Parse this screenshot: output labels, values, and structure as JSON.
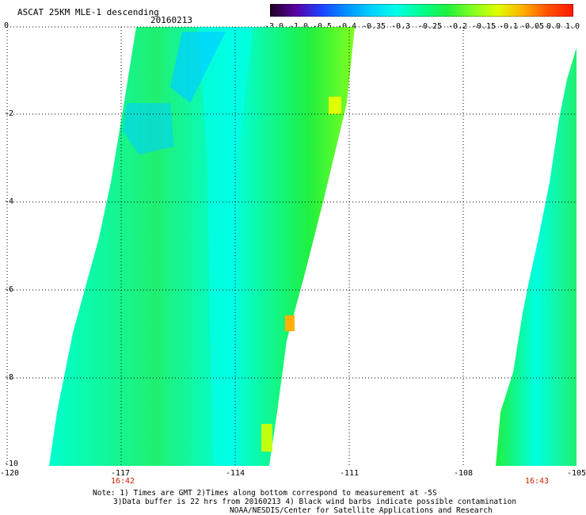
{
  "title": "ASCAT 25KM MLE-1 descending",
  "date": "20160213",
  "colorbar": {
    "labels": [
      "-3.0",
      "-1.0",
      "-0.5",
      "-0.4",
      "-0.35",
      "-0.3",
      "-0.25",
      "-0.2",
      "-0.15",
      "-0.1",
      "-0.05",
      "0.0",
      "1.0"
    ],
    "colors": [
      "#200020",
      "#5a00a0",
      "#2040ff",
      "#0090ff",
      "#00d0ff",
      "#00ffe8",
      "#00ff90",
      "#20f040",
      "#80ff20",
      "#e0ff00",
      "#ffb000",
      "#ff5000",
      "#ff1800"
    ]
  },
  "axes": {
    "lat_labels": [
      "0",
      "-2",
      "-4",
      "-6",
      "-8",
      "-10"
    ],
    "lon_labels": [
      "-120",
      "-117",
      "-114",
      "-111",
      "-108",
      "-105"
    ],
    "lat_range": [
      -10,
      0
    ],
    "lon_range": [
      -120,
      -105
    ]
  },
  "times": [
    "16:42",
    "16:43"
  ],
  "notes": {
    "line1": "Note: 1) Times are GMT 2)Times along bottom correspond to measurement at -5S",
    "line2": "3)Data buffer is 22 hrs from 20160213 4) Black wind barbs indicate possible contamination",
    "credit": "NOAA/NESDIS/Center for Satellite Applications and Research"
  }
}
